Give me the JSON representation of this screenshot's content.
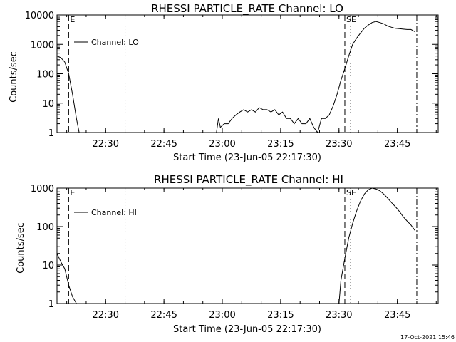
{
  "footer_stamp": "17-Oct-2021 15:46",
  "chart_data": [
    {
      "type": "line",
      "title": "RHESSI PARTICLE_RATE Channel: LO",
      "xlabel": "Start Time (23-Jun-05 22:17:30)",
      "ylabel": "Counts/sec",
      "x_unit": "minutes after 22:17:30",
      "xlim": [
        0,
        98
      ],
      "ylim": [
        1,
        10000
      ],
      "yscale": "log",
      "x_tick_labels": [
        "22:30",
        "22:45",
        "23:00",
        "23:15",
        "23:30",
        "23:45"
      ],
      "y_tick_labels": [
        "1",
        "10",
        "100",
        "1000",
        "10000"
      ],
      "legend": {
        "placement": "top-left",
        "entries": [
          "Channel: LO"
        ]
      },
      "markers": [
        {
          "label": "E",
          "style": "dashed",
          "x": 3
        },
        {
          "label": "",
          "style": "dotted",
          "x": 17.5
        },
        {
          "label": "SE",
          "style": "dashed",
          "x": 74
        },
        {
          "label": "",
          "style": "dotted",
          "x": 75.5
        },
        {
          "label": "",
          "style": "dashdot",
          "x": 92.5
        }
      ],
      "series": [
        {
          "name": "Channel: LO",
          "segments": [
            [
              [
                0,
                400
              ],
              [
                1,
                350
              ],
              [
                2,
                250
              ],
              [
                3,
                100
              ],
              [
                4,
                20
              ],
              [
                5,
                3
              ],
              [
                5.7,
                1
              ]
            ],
            [
              [
                41,
                1
              ],
              [
                41.5,
                3
              ],
              [
                42,
                1.5
              ],
              [
                43,
                2
              ],
              [
                44,
                2
              ],
              [
                45,
                3
              ],
              [
                46,
                4
              ],
              [
                47,
                5
              ],
              [
                48,
                6
              ],
              [
                49,
                5
              ],
              [
                50,
                6
              ],
              [
                51,
                5
              ],
              [
                52,
                7
              ],
              [
                53,
                6
              ],
              [
                54,
                6
              ],
              [
                55,
                5
              ],
              [
                56,
                6
              ],
              [
                57,
                4
              ],
              [
                58,
                5
              ],
              [
                59,
                3
              ],
              [
                60,
                3
              ],
              [
                61,
                2
              ],
              [
                62,
                3
              ],
              [
                63,
                2
              ],
              [
                64,
                2
              ],
              [
                65,
                3
              ],
              [
                66,
                1.5
              ],
              [
                67,
                1
              ],
              [
                68,
                3
              ],
              [
                69,
                3
              ],
              [
                70,
                4
              ],
              [
                71,
                8
              ],
              [
                72,
                20
              ],
              [
                73,
                60
              ],
              [
                74,
                150
              ],
              [
                75,
                400
              ],
              [
                76,
                1000
              ],
              [
                77,
                1600
              ],
              [
                78,
                2400
              ],
              [
                79,
                3500
              ],
              [
                80,
                4500
              ],
              [
                81,
                5500
              ],
              [
                82,
                6000
              ],
              [
                83,
                5500
              ],
              [
                84,
                5000
              ],
              [
                85,
                4200
              ],
              [
                86,
                3800
              ],
              [
                87,
                3500
              ],
              [
                88,
                3400
              ],
              [
                89,
                3300
              ],
              [
                90,
                3200
              ],
              [
                91,
                3200
              ],
              [
                92,
                2700
              ]
            ]
          ]
        }
      ]
    },
    {
      "type": "line",
      "title": "RHESSI PARTICLE_RATE Channel: HI",
      "xlabel": "Start Time (23-Jun-05 22:17:30)",
      "ylabel": "Counts/sec",
      "x_unit": "minutes after 22:17:30",
      "xlim": [
        0,
        98
      ],
      "ylim": [
        1,
        1000
      ],
      "yscale": "log",
      "x_tick_labels": [
        "22:30",
        "22:45",
        "23:00",
        "23:15",
        "23:30",
        "23:45"
      ],
      "y_tick_labels": [
        "1",
        "10",
        "100",
        "1000"
      ],
      "legend": {
        "placement": "top-left",
        "entries": [
          "Channel: HI"
        ]
      },
      "markers": [
        {
          "label": "E",
          "style": "dashed",
          "x": 3
        },
        {
          "label": "",
          "style": "dotted",
          "x": 17.5
        },
        {
          "label": "SE",
          "style": "dashed",
          "x": 74
        },
        {
          "label": "",
          "style": "dotted",
          "x": 75.5
        },
        {
          "label": "",
          "style": "dashdot",
          "x": 92.5
        }
      ],
      "series": [
        {
          "name": "Channel: HI",
          "segments": [
            [
              [
                0,
                20
              ],
              [
                1,
                12
              ],
              [
                2,
                8
              ],
              [
                3,
                3
              ],
              [
                4,
                1.5
              ],
              [
                5,
                1
              ]
            ],
            [
              [
                72.5,
                1
              ],
              [
                73,
                4
              ],
              [
                74,
                15
              ],
              [
                75,
                50
              ],
              [
                76,
                120
              ],
              [
                77,
                250
              ],
              [
                78,
                450
              ],
              [
                79,
                700
              ],
              [
                80,
                900
              ],
              [
                81,
                1000
              ],
              [
                82,
                950
              ],
              [
                83,
                850
              ],
              [
                84,
                700
              ],
              [
                85,
                550
              ],
              [
                86,
                420
              ],
              [
                87,
                330
              ],
              [
                88,
                250
              ],
              [
                89,
                180
              ],
              [
                90,
                140
              ],
              [
                91,
                110
              ],
              [
                92,
                80
              ]
            ]
          ]
        }
      ]
    }
  ]
}
